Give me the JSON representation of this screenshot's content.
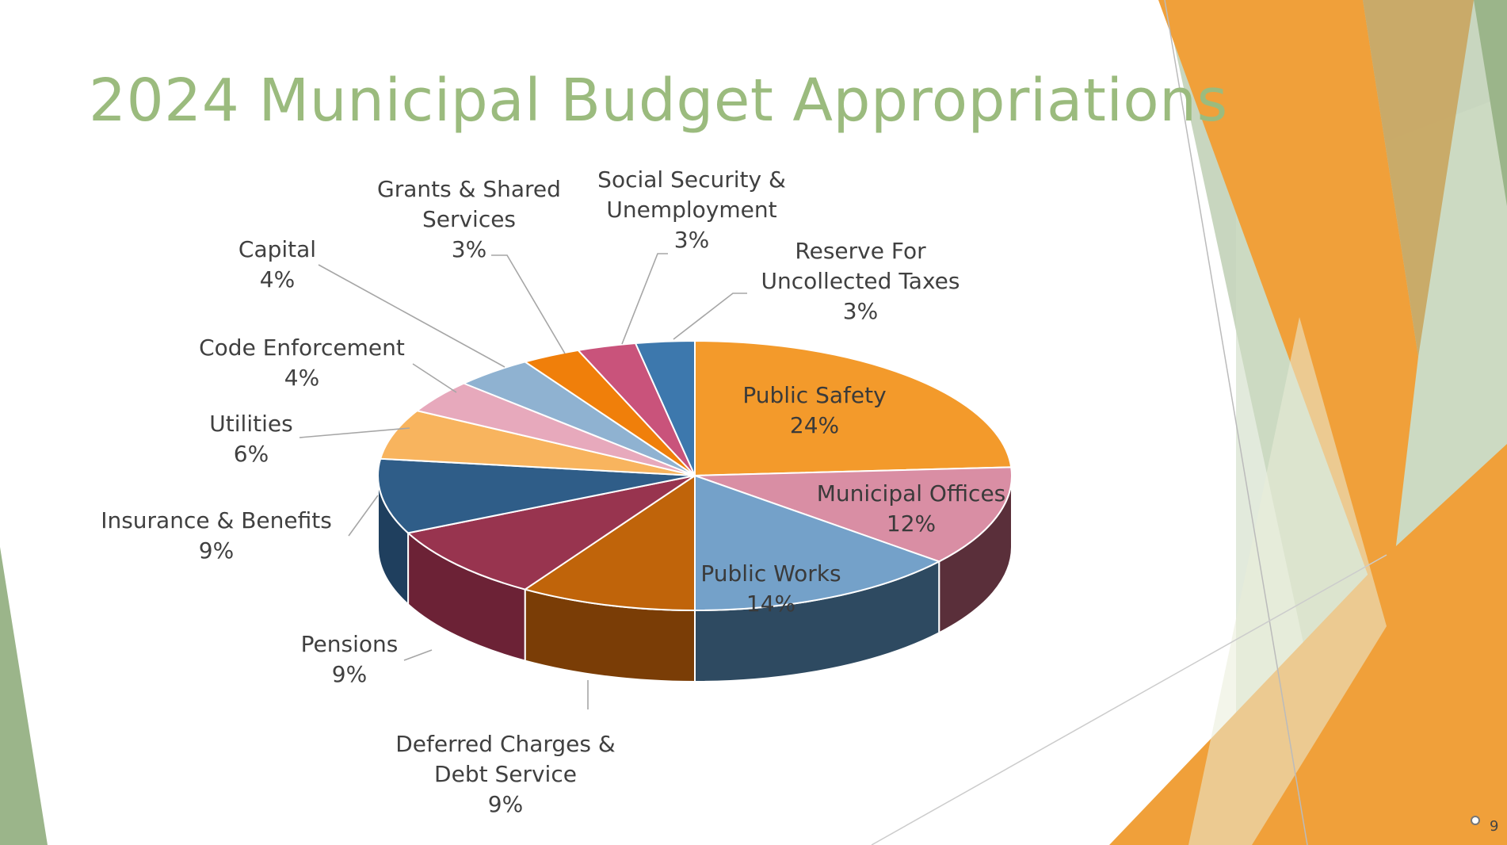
{
  "slide": {
    "title": "2024 Municipal Budget Appropriations",
    "page_number": "9"
  },
  "colors": {
    "title": "#9bbb7e",
    "accent_orange": "#f39a2b",
    "accent_green": "#9bb58a"
  },
  "chart_data": {
    "type": "pie",
    "style": "3d",
    "title": "",
    "slices": [
      {
        "label": [
          "Public Safety"
        ],
        "value": 24,
        "display": "24%",
        "color": "#f39a2b",
        "side": "#b3681b",
        "label_inside": true
      },
      {
        "label": [
          "Municipal Offices"
        ],
        "value": 12,
        "display": "12%",
        "color": "#d98ea4",
        "side": "#5a2f3a",
        "label_inside": true
      },
      {
        "label": [
          "Public Works"
        ],
        "value": 14,
        "display": "14%",
        "color": "#74a1c9",
        "side": "#2e4a61",
        "label_inside": true
      },
      {
        "label": [
          "Deferred Charges &",
          "Debt Service"
        ],
        "value": 9,
        "display": "9%",
        "color": "#c0640a",
        "side": "#7a3d06",
        "label_inside": false
      },
      {
        "label": [
          "Pensions"
        ],
        "value": 9,
        "display": "9%",
        "color": "#98344f",
        "side": "#6c2236",
        "label_inside": false
      },
      {
        "label": [
          "Insurance  & Benefits"
        ],
        "value": 9,
        "display": "9%",
        "color": "#2f5d88",
        "side": "#1f3f5e",
        "label_inside": false
      },
      {
        "label": [
          "Utilities"
        ],
        "value": 6,
        "display": "6%",
        "color": "#f8b45e",
        "side": "#b3782e",
        "label_inside": false
      },
      {
        "label": [
          "Code Enforcement"
        ],
        "value": 4,
        "display": "4%",
        "color": "#e7a9bc",
        "side": "#9a6b79",
        "label_inside": false
      },
      {
        "label": [
          "Capital"
        ],
        "value": 4,
        "display": "4%",
        "color": "#8fb2d1",
        "side": "#5a7b96",
        "label_inside": false
      },
      {
        "label": [
          "Grants & Shared",
          "Services"
        ],
        "value": 3,
        "display": "3%",
        "color": "#f07f0a",
        "side": "#a85706",
        "label_inside": false
      },
      {
        "label": [
          "Social Security &",
          "Unemployment"
        ],
        "value": 3,
        "display": "3%",
        "color": "#c9537b",
        "side": "#8a3452",
        "label_inside": false
      },
      {
        "label": [
          "Reserve For",
          "Uncollected Taxes"
        ],
        "value": 3,
        "display": "3%",
        "color": "#3d78ad",
        "side": "#28537a",
        "label_inside": false
      }
    ]
  }
}
